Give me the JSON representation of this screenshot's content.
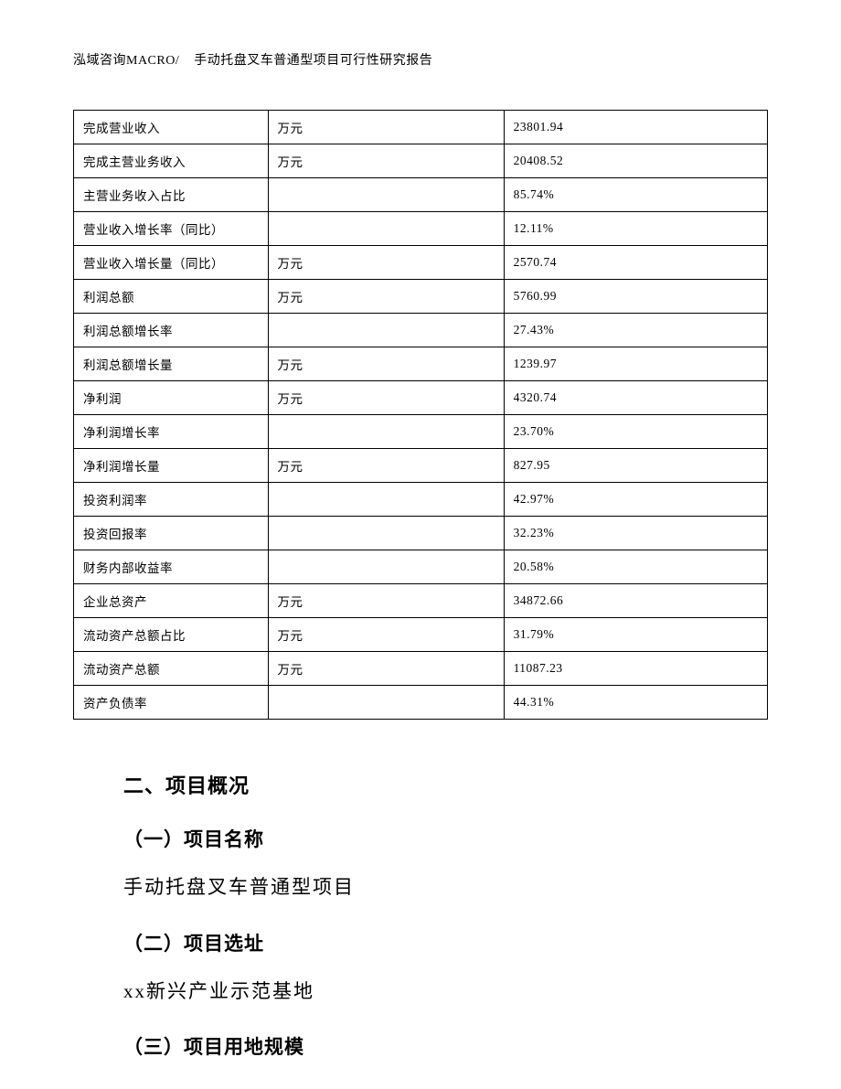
{
  "header": {
    "company": "泓域咨询MACRO/",
    "doc_title": "手动托盘叉车普通型项目可行性研究报告"
  },
  "table": {
    "rows": [
      {
        "name": "完成营业收入",
        "unit": "万元",
        "value": "23801.94"
      },
      {
        "name": "完成主营业务收入",
        "unit": "万元",
        "value": "20408.52"
      },
      {
        "name": "主营业务收入占比",
        "unit": "",
        "value": "85.74%"
      },
      {
        "name": "营业收入增长率（同比）",
        "unit": "",
        "value": "12.11%"
      },
      {
        "name": "营业收入增长量（同比）",
        "unit": "万元",
        "value": "2570.74"
      },
      {
        "name": "利润总额",
        "unit": "万元",
        "value": "5760.99"
      },
      {
        "name": "利润总额增长率",
        "unit": "",
        "value": "27.43%"
      },
      {
        "name": "利润总额增长量",
        "unit": "万元",
        "value": "1239.97"
      },
      {
        "name": "净利润",
        "unit": "万元",
        "value": "4320.74"
      },
      {
        "name": "净利润增长率",
        "unit": "",
        "value": "23.70%"
      },
      {
        "name": "净利润增长量",
        "unit": "万元",
        "value": "827.95"
      },
      {
        "name": "投资利润率",
        "unit": "",
        "value": "42.97%"
      },
      {
        "name": "投资回报率",
        "unit": "",
        "value": "32.23%"
      },
      {
        "name": "财务内部收益率",
        "unit": "",
        "value": "20.58%"
      },
      {
        "name": "企业总资产",
        "unit": "万元",
        "value": "34872.66"
      },
      {
        "name": "流动资产总额占比",
        "unit": "万元",
        "value": "31.79%"
      },
      {
        "name": "流动资产总额",
        "unit": "万元",
        "value": "11087.23"
      },
      {
        "name": "资产负债率",
        "unit": "",
        "value": "44.31%"
      }
    ]
  },
  "sections": {
    "h2": "二、项目概况",
    "s1_h3": "（一）项目名称",
    "s1_text": "手动托盘叉车普通型项目",
    "s2_h3": "（二）项目选址",
    "s2_text": "xx新兴产业示范基地",
    "s3_h3": "（三）项目用地规模"
  }
}
